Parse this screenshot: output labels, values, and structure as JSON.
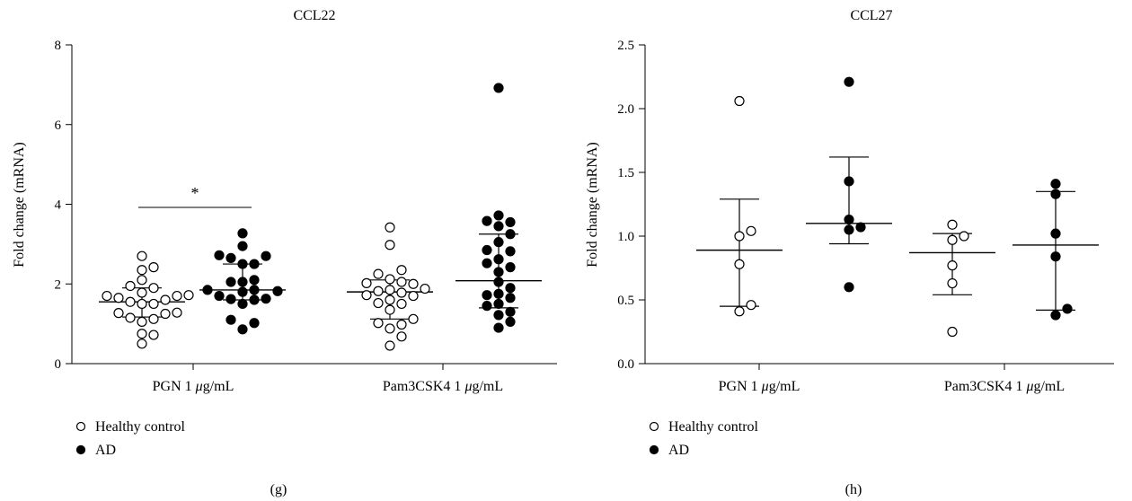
{
  "chart_data": [
    {
      "type": "scatter",
      "panel_label": "(g)",
      "title": "CCL22",
      "ylabel": "Fold change (mRNA)",
      "xlabel": "",
      "ylim": [
        0,
        8
      ],
      "yticks": [
        0,
        2,
        4,
        6,
        8
      ],
      "categories": [
        "PGN 1 μg/mL",
        "Pam3CSK4 1 μg/mL"
      ],
      "series": [
        {
          "name": "Healthy control",
          "marker": "open-circle",
          "groups": [
            {
              "category": "PGN 1 μg/mL",
              "mean": 1.55,
              "sd_low": 1.17,
              "sd_high": 1.9,
              "values": [
                0.5,
                0.72,
                0.75,
                1.05,
                1.12,
                1.15,
                1.25,
                1.27,
                1.28,
                1.5,
                1.5,
                1.55,
                1.6,
                1.65,
                1.7,
                1.7,
                1.72,
                1.78,
                1.9,
                1.95,
                2.1,
                2.35,
                2.42,
                2.7
              ]
            },
            {
              "category": "Pam3CSK4 1 μg/mL",
              "mean": 1.8,
              "sd_low": 1.12,
              "sd_high": 2.1,
              "values": [
                0.45,
                0.68,
                0.88,
                0.98,
                1.02,
                1.12,
                1.35,
                1.5,
                1.52,
                1.6,
                1.7,
                1.72,
                1.78,
                1.82,
                1.85,
                1.88,
                2.0,
                2.02,
                2.05,
                2.12,
                2.25,
                2.35,
                2.98,
                3.42
              ]
            }
          ]
        },
        {
          "name": "AD",
          "marker": "filled-circle",
          "groups": [
            {
              "category": "PGN 1 μg/mL",
              "mean": 1.85,
              "sd_low": 1.6,
              "sd_high": 2.5,
              "values": [
                0.86,
                1.02,
                1.1,
                1.5,
                1.6,
                1.62,
                1.63,
                1.7,
                1.8,
                1.82,
                1.85,
                1.85,
                2.05,
                2.05,
                2.1,
                2.5,
                2.5,
                2.65,
                2.7,
                2.72,
                2.95,
                3.27
              ]
            },
            {
              "category": "Pam3CSK4 1 μg/mL",
              "mean": 2.08,
              "sd_low": 1.4,
              "sd_high": 3.25,
              "values": [
                0.9,
                1.05,
                1.22,
                1.3,
                1.45,
                1.5,
                1.65,
                1.72,
                1.75,
                1.9,
                2.05,
                2.3,
                2.42,
                2.52,
                2.62,
                2.82,
                2.85,
                3.05,
                3.25,
                3.45,
                3.55,
                3.58,
                3.72,
                6.92
              ]
            }
          ]
        }
      ],
      "annotations": [
        {
          "text": "*",
          "between": [
            "PGN 1 μg/mL Healthy control",
            "PGN 1 μg/mL AD"
          ],
          "y": 3.92
        }
      ],
      "legend": {
        "position": "bottom-left",
        "entries": [
          "Healthy control",
          "AD"
        ]
      },
      "grid": false
    },
    {
      "type": "scatter",
      "panel_label": "(h)",
      "title": "CCL27",
      "ylabel": "Fold change (mRNA)",
      "xlabel": "",
      "ylim": [
        0,
        2.5
      ],
      "yticks": [
        "0.0",
        "0.5",
        "1.0",
        "1.5",
        "2.0",
        "2.5"
      ],
      "categories": [
        "PGN 1 μg/mL",
        "Pam3CSK4 1 μg/mL"
      ],
      "series": [
        {
          "name": "Healthy control",
          "marker": "open-circle",
          "groups": [
            {
              "category": "PGN 1 μg/mL",
              "mean": 0.89,
              "sd_low": 0.45,
              "sd_high": 1.29,
              "values": [
                0.41,
                0.46,
                0.78,
                1.0,
                1.04,
                2.06
              ]
            },
            {
              "category": "Pam3CSK4 1 μg/mL",
              "mean": 0.87,
              "sd_low": 0.54,
              "sd_high": 1.02,
              "values": [
                0.25,
                0.63,
                0.77,
                0.97,
                1.0,
                1.09
              ]
            }
          ]
        },
        {
          "name": "AD",
          "marker": "filled-circle",
          "groups": [
            {
              "category": "PGN 1 μg/mL",
              "mean": 1.1,
              "sd_low": 0.94,
              "sd_high": 1.62,
              "values": [
                0.6,
                1.05,
                1.07,
                1.13,
                1.43,
                2.21
              ]
            },
            {
              "category": "Pam3CSK4 1 μg/mL",
              "mean": 0.93,
              "sd_low": 0.42,
              "sd_high": 1.35,
              "values": [
                0.38,
                0.43,
                0.84,
                1.02,
                1.33,
                1.41
              ]
            }
          ]
        }
      ],
      "annotations": [],
      "legend": {
        "position": "bottom-left",
        "entries": [
          "Healthy control",
          "AD"
        ]
      },
      "grid": false
    }
  ]
}
